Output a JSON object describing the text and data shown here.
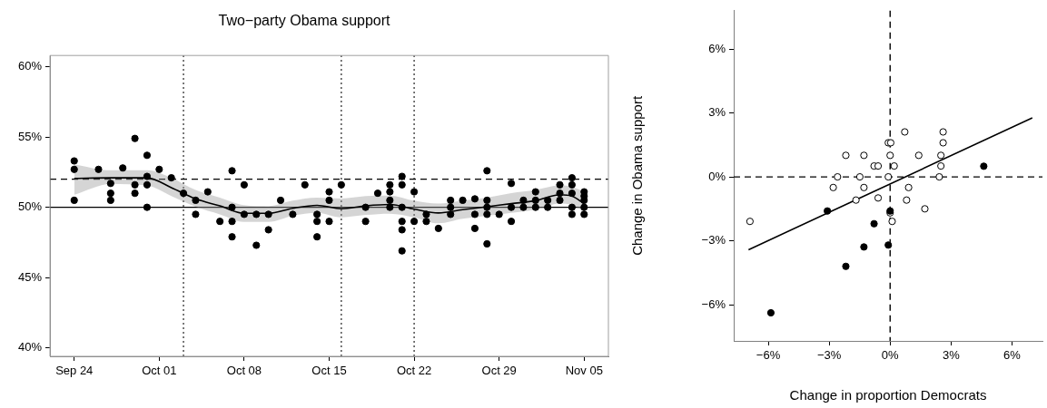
{
  "chart_data": [
    {
      "type": "scatter",
      "title": "Two−party Obama support",
      "series": [
        {
          "color": "#000000",
          "x": [
            "--09-24",
            "--09-24",
            "--09-24",
            "--09-26",
            "--09-27",
            "--09-27",
            "--09-27",
            "--09-28",
            "--09-29",
            "--09-29",
            "--09-29",
            "--09-30",
            "--09-30",
            "--09-30",
            "--09-30",
            "--10-01",
            "--10-02",
            "--10-03",
            "--10-04",
            "--10-04",
            "--10-05",
            "--10-06",
            "--10-07",
            "--10-07",
            "--10-07",
            "--10-07",
            "--10-08",
            "--10-08",
            "--10-09",
            "--10-09",
            "--10-10",
            "--10-10",
            "--10-11",
            "--10-12",
            "--10-13",
            "--10-14",
            "--10-14",
            "--10-14",
            "--10-15",
            "--10-15",
            "--10-15",
            "--10-16",
            "--10-18",
            "--10-18",
            "--10-19",
            "--10-20",
            "--10-20",
            "--10-20",
            "--10-20",
            "--10-21",
            "--10-21",
            "--10-21",
            "--10-21",
            "--10-21",
            "--10-21",
            "--10-22",
            "--10-22",
            "--10-23",
            "--10-23",
            "--10-24",
            "--10-25",
            "--10-25",
            "--10-25",
            "--10-26",
            "--10-27",
            "--10-27",
            "--10-27",
            "--10-28",
            "--10-28",
            "--10-28",
            "--10-28",
            "--10-28",
            "--10-29",
            "--10-30",
            "--10-30",
            "--10-30",
            "--10-31",
            "--10-31",
            "--11-01",
            "--11-01",
            "--11-01",
            "--11-02",
            "--11-02",
            "--11-03",
            "--11-03",
            "--11-03",
            "--11-04",
            "--11-04",
            "--11-04",
            "--11-04",
            "--11-04",
            "--11-05",
            "--11-05",
            "--11-05",
            "--11-05",
            "--11-05"
          ],
          "values": [
            53.3,
            52.7,
            50.5,
            52.7,
            51.7,
            51.0,
            50.5,
            52.8,
            54.9,
            51.6,
            51.0,
            53.7,
            52.2,
            51.6,
            50.0,
            52.7,
            52.1,
            51.0,
            50.5,
            49.5,
            51.1,
            49.0,
            52.6,
            50.0,
            49.0,
            47.9,
            51.6,
            49.5,
            49.5,
            47.3,
            49.5,
            48.4,
            50.5,
            49.5,
            51.6,
            49.5,
            49.0,
            47.9,
            51.1,
            50.5,
            49.0,
            51.6,
            50.0,
            49.0,
            51.0,
            51.6,
            51.1,
            50.5,
            50.0,
            52.2,
            51.6,
            50.0,
            49.0,
            48.4,
            46.9,
            51.1,
            49.0,
            49.5,
            49.0,
            48.5,
            50.5,
            50.0,
            49.5,
            50.5,
            50.6,
            49.5,
            48.5,
            52.6,
            50.5,
            50.0,
            49.5,
            47.4,
            49.5,
            51.7,
            50.0,
            49.0,
            50.5,
            50.0,
            51.1,
            50.5,
            50.0,
            50.5,
            50.0,
            51.6,
            51.0,
            50.5,
            52.1,
            51.6,
            51.0,
            50.0,
            49.5,
            51.1,
            50.8,
            50.5,
            50.0,
            49.5
          ]
        },
        {
          "type": "line",
          "marker": "none",
          "color": "#000000",
          "x": [
            "--09-24",
            "--09-27",
            "--09-30",
            "--10-02",
            "--10-04",
            "--10-06",
            "--10-08",
            "--10-10",
            "--10-12",
            "--10-14",
            "--10-16",
            "--10-18",
            "--10-20",
            "--10-22",
            "--10-24",
            "--10-26",
            "--10-28",
            "--10-30",
            "--11-01",
            "--11-03",
            "--11-04",
            "--11-05"
          ],
          "values": [
            52.05,
            52.1,
            52.1,
            51.4,
            50.6,
            50.1,
            49.57,
            49.57,
            49.93,
            50.14,
            49.9,
            50.1,
            50.2,
            49.87,
            49.6,
            49.83,
            50.04,
            50.26,
            50.47,
            50.9,
            50.8,
            50.26
          ],
          "lower": [
            50.9,
            51.66,
            51.55,
            50.8,
            50.04,
            49.5,
            48.96,
            48.96,
            49.4,
            49.61,
            49.29,
            49.46,
            49.55,
            49.29,
            48.86,
            49.18,
            49.4,
            49.61,
            49.83,
            50.26,
            50.15,
            49.72
          ],
          "upper": [
            53.06,
            52.63,
            52.63,
            52.09,
            51.23,
            50.69,
            50.15,
            50.08,
            50.47,
            50.69,
            50.63,
            50.8,
            50.84,
            50.47,
            50.26,
            50.47,
            50.69,
            51.01,
            51.23,
            51.55,
            51.45,
            51.12
          ]
        }
      ],
      "xlim": [
        "--09-22",
        "--11-07"
      ],
      "xticks": [
        {
          "value": "--09-24",
          "label": "Sep 24"
        },
        {
          "value": "--10-01",
          "label": "Oct 01"
        },
        {
          "value": "--10-08",
          "label": "Oct 08"
        },
        {
          "value": "--10-15",
          "label": "Oct 15"
        },
        {
          "value": "--10-22",
          "label": "Oct 22"
        },
        {
          "value": "--10-29",
          "label": "Oct 29"
        },
        {
          "value": "--11-05",
          "label": "Nov 05"
        }
      ],
      "ylim": [
        39.4,
        60.8
      ],
      "yticks": [
        {
          "value": 40,
          "label": "40%"
        },
        {
          "value": 45,
          "label": "45%"
        },
        {
          "value": 50,
          "label": "50%"
        },
        {
          "value": 55,
          "label": "55%"
        },
        {
          "value": 60,
          "label": "60%"
        }
      ],
      "ref_lines": [
        {
          "axis": "y",
          "value": 50,
          "line_style": "solid"
        },
        {
          "axis": "y",
          "value": 52,
          "line_style": "dashed"
        },
        {
          "axis": "x",
          "value": "--10-03",
          "line_style": "dotted"
        },
        {
          "axis": "x",
          "value": "--10-16",
          "line_style": "dotted"
        },
        {
          "axis": "x",
          "value": "--10-22",
          "line_style": "dotted"
        }
      ],
      "grid": false,
      "legend": false,
      "marker": "circle"
    },
    {
      "type": "scatter",
      "xlabel": "Change in proportion Democrats",
      "ylabel": "Change in Obama support",
      "series": [
        {
          "color": "#000000",
          "x": [
            -3.09,
            -0.79,
            -1.29,
            -2.18,
            -0.09,
            -5.87,
            4.61,
            0
          ],
          "values": [
            -1.6,
            -2.2,
            -3.29,
            -4.2,
            -3.2,
            -6.38,
            0.5,
            -1.6
          ]
        },
        {
          "color": "#ffffff",
          "x": [
            -6.9,
            -2.8,
            -2.59,
            -2.18,
            -1.49,
            -1.29,
            -1.29,
            -1.68,
            -0.79,
            -0.59,
            -0.59,
            -0.09,
            0.03,
            0,
            -0.09,
            0.2,
            0,
            0.1,
            0.72,
            0.91,
            0.81,
            1.41,
            1.71,
            2.42,
            2.5,
            2.5,
            2.61,
            2.61
          ],
          "values": [
            -2.09,
            -0.5,
            0,
            1.01,
            0,
            1.01,
            -0.5,
            -1.09,
            0.51,
            0.51,
            -0.99,
            1.6,
            1.6,
            1.01,
            0,
            0.51,
            -1.69,
            -2.09,
            2.11,
            -0.5,
            -1.09,
            1.01,
            -1.5,
            0,
            1.01,
            0.51,
            2.11,
            1.6
          ]
        },
        {
          "type": "line",
          "marker": "none",
          "color": "#000000",
          "x": [
            -6.97,
            7.0
          ],
          "values": [
            -3.42,
            2.77
          ]
        }
      ],
      "xlim": [
        -7.7,
        7.5
      ],
      "xticks": [
        {
          "value": -6,
          "label": "−6%"
        },
        {
          "value": -3,
          "label": "−3%"
        },
        {
          "value": 0,
          "label": "0%"
        },
        {
          "value": 3,
          "label": "3%"
        },
        {
          "value": 6,
          "label": "6%"
        }
      ],
      "ylim": [
        -7.7,
        7.8
      ],
      "yticks": [
        {
          "value": -6,
          "label": "−6%"
        },
        {
          "value": -3,
          "label": "−3%"
        },
        {
          "value": 0,
          "label": "0%"
        },
        {
          "value": 3,
          "label": "3%"
        },
        {
          "value": 6,
          "label": "6%"
        }
      ],
      "ref_lines": [
        {
          "axis": "x",
          "value": 0,
          "line_style": "dashed"
        },
        {
          "axis": "y",
          "value": 0,
          "line_style": "dashed"
        }
      ],
      "grid": false,
      "legend": false,
      "marker": "circle"
    }
  ]
}
